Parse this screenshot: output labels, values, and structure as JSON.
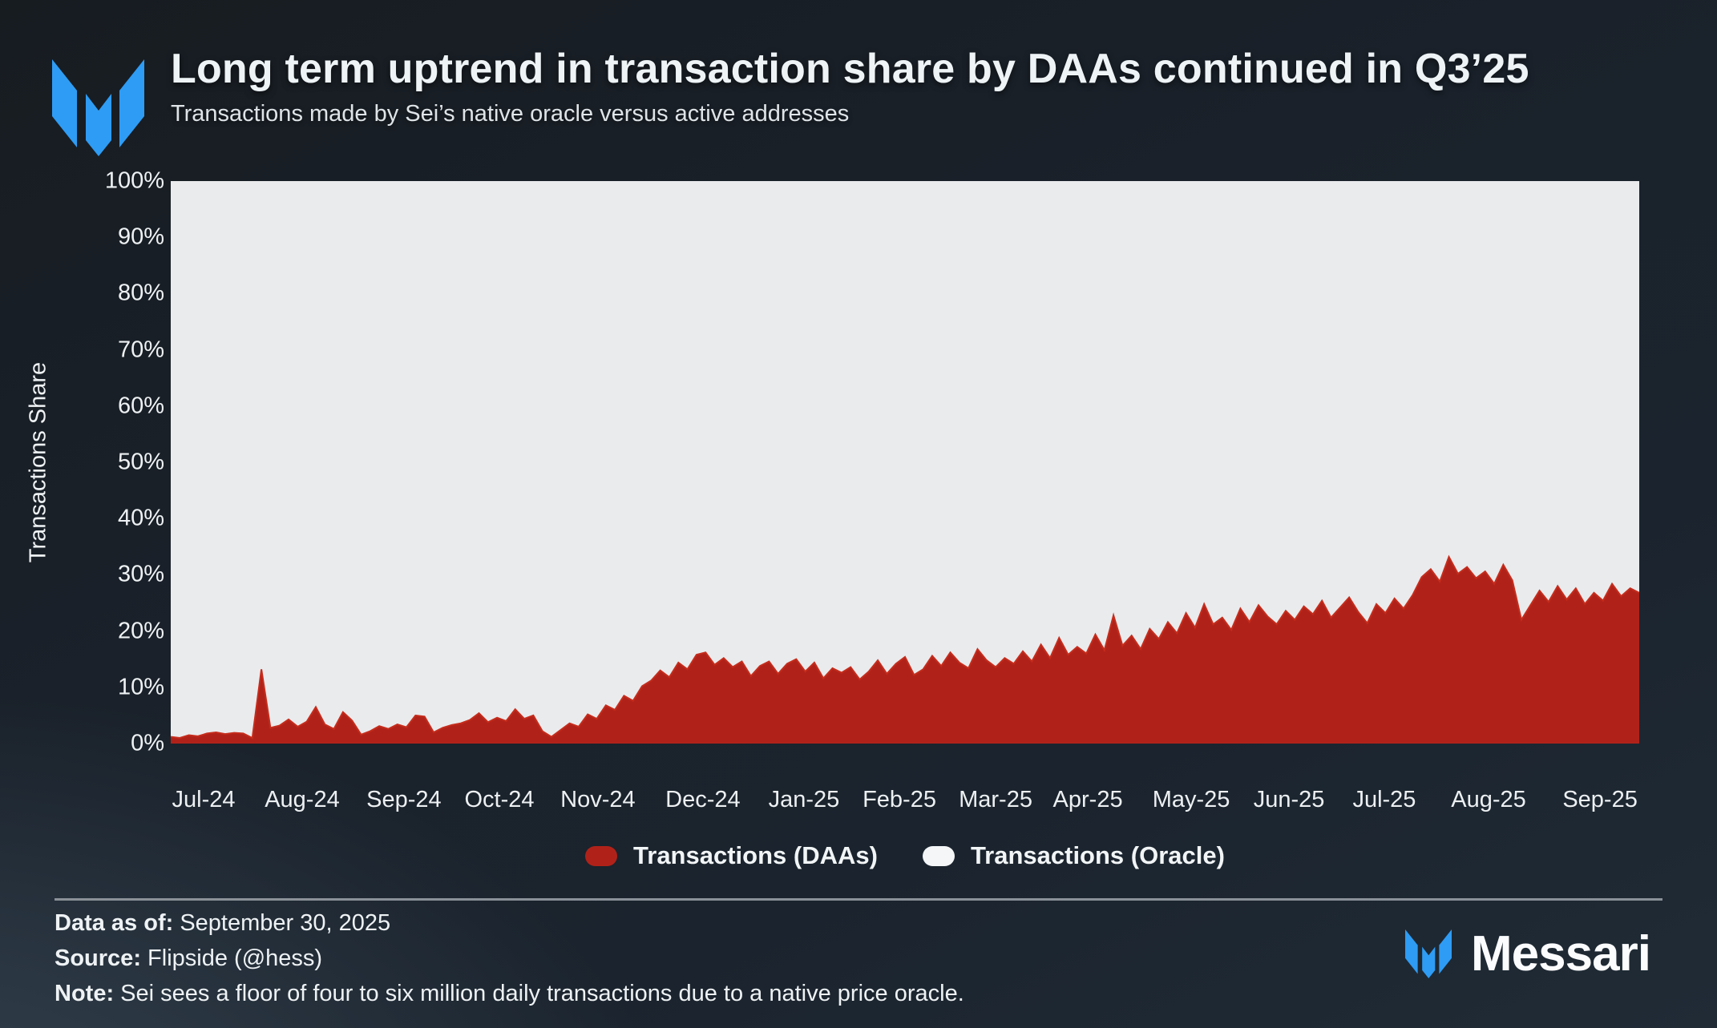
{
  "header": {
    "title": "Long term uptrend in transaction share by DAAs continued in Q3’25",
    "subtitle": "Transactions made by Sei’s native oracle versus active addresses"
  },
  "brand": {
    "wordmark": "Messari",
    "logo_color": "#2e9cf4"
  },
  "legend": {
    "items": [
      {
        "label": "Transactions (DAAs)",
        "color": "#b02219"
      },
      {
        "label": "Transactions (Oracle)",
        "color": "#f4f6f7"
      }
    ]
  },
  "footer": {
    "data_as_of_label": "Data as of:",
    "data_as_of": "September 30, 2025",
    "source_label": "Source:",
    "source": "Flipside (@hess)",
    "note_label": "Note:",
    "note": "Sei sees a floor of four to six million daily transactions due to a native price oracle."
  },
  "chart_data": {
    "type": "area",
    "stacked": true,
    "title": "Long term uptrend in transaction share by DAAs continued in Q3’25",
    "xlabel": "",
    "ylabel": "Transactions Share",
    "ylim": [
      0,
      100
    ],
    "grid": false,
    "legend_position": "bottom",
    "plot_background": "#eaebed",
    "x_range": [
      "Jul 2024",
      "Sep 30, 2025"
    ],
    "x_tick_labels": [
      "Jul-24",
      "Aug-24",
      "Sep-24",
      "Oct-24",
      "Nov-24",
      "Dec-24",
      "Jan-25",
      "Feb-25",
      "Mar-25",
      "Apr-25",
      "May-25",
      "Jun-25",
      "Jul-25",
      "Aug-25",
      "Sep-25"
    ],
    "x_tick_positions_pct": [
      2.24,
      8.95,
      15.88,
      22.38,
      29.09,
      36.24,
      43.12,
      49.62,
      56.17,
      62.45,
      69.49,
      76.15,
      82.64,
      89.74,
      97.33
    ],
    "y_tick_labels": [
      "0%",
      "10%",
      "20%",
      "30%",
      "40%",
      "50%",
      "60%",
      "70%",
      "80%",
      "90%",
      "100%"
    ],
    "series": [
      {
        "name": "Transactions (DAAs)",
        "color": "#b02219",
        "edge_color": "#c52c1c",
        "unit": "% of transactions",
        "sampling": "approx. every 3 days, Jul 2024 to Sep 30 2025 (values estimated from chart)",
        "values": [
          1.2,
          1.0,
          1.5,
          1.3,
          1.8,
          2.0,
          1.7,
          1.9,
          1.8,
          1.0,
          13.2,
          2.8,
          3.2,
          4.3,
          3.0,
          3.9,
          6.5,
          3.4,
          2.6,
          5.6,
          4.1,
          1.6,
          2.2,
          3.1,
          2.6,
          3.4,
          2.9,
          5.0,
          4.8,
          2.0,
          2.8,
          3.3,
          3.6,
          4.2,
          5.4,
          3.8,
          4.6,
          4.0,
          6.1,
          4.4,
          5.0,
          2.2,
          1.2,
          2.4,
          3.6,
          3.0,
          5.2,
          4.4,
          6.8,
          6.0,
          8.5,
          7.6,
          10.2,
          11.2,
          13.0,
          11.8,
          14.4,
          13.2,
          15.8,
          16.2,
          14.0,
          15.2,
          13.6,
          14.6,
          12.0,
          13.8,
          14.6,
          12.4,
          14.2,
          15.0,
          12.8,
          14.4,
          11.6,
          13.4,
          12.6,
          13.6,
          11.4,
          12.8,
          14.8,
          12.4,
          14.2,
          15.4,
          12.2,
          13.2,
          15.6,
          13.8,
          16.2,
          14.4,
          13.4,
          16.8,
          14.8,
          13.6,
          15.2,
          14.2,
          16.4,
          14.6,
          17.6,
          15.2,
          18.8,
          15.8,
          17.2,
          16.0,
          19.4,
          16.6,
          22.8,
          17.4,
          19.2,
          16.8,
          20.4,
          18.6,
          21.6,
          19.6,
          23.2,
          20.6,
          24.8,
          21.2,
          22.4,
          20.2,
          24.0,
          21.6,
          24.6,
          22.6,
          21.2,
          23.6,
          22.0,
          24.4,
          23.0,
          25.4,
          22.4,
          24.2,
          26.0,
          23.4,
          21.4,
          24.8,
          23.2,
          25.8,
          24.0,
          26.4,
          29.6,
          31.0,
          28.8,
          33.2,
          30.2,
          31.4,
          29.4,
          30.6,
          28.4,
          31.8,
          29.0,
          22.0,
          24.6,
          27.2,
          25.2,
          28.0,
          25.6,
          27.6,
          24.8,
          26.8,
          25.4,
          28.4,
          26.2,
          27.6,
          26.8
        ]
      },
      {
        "name": "Transactions (Oracle)",
        "color": "#eaebed",
        "values_rule": "complement to 100% of Transactions (DAAs)"
      }
    ]
  }
}
